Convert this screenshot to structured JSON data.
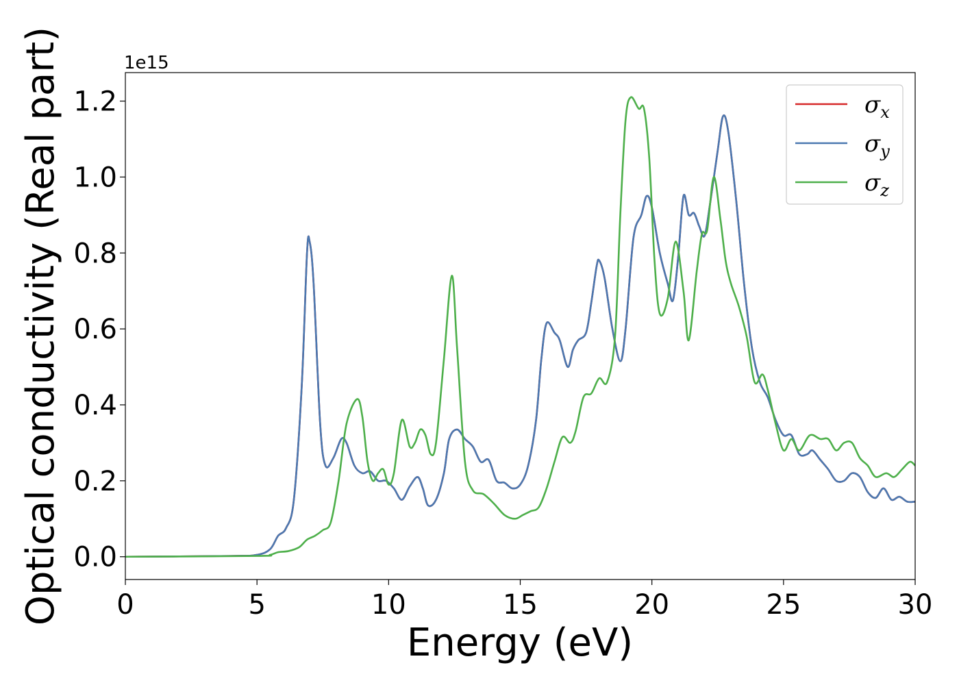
{
  "chart_data": {
    "type": "line",
    "xlabel": "Energy (eV)",
    "ylabel": "Optical conductivity (Real part)",
    "y_offset_text": "1e15",
    "y_scale_multiplier": 1000000000000000.0,
    "xlim": [
      0,
      30
    ],
    "ylim": [
      -0.06,
      1.275
    ],
    "x_ticks": [
      0,
      5,
      10,
      15,
      20,
      25,
      30
    ],
    "x_tick_labels": [
      "0",
      "5",
      "10",
      "15",
      "20",
      "25",
      "30"
    ],
    "y_ticks": [
      0.0,
      0.2,
      0.4,
      0.6,
      0.8,
      1.0,
      1.2
    ],
    "y_tick_labels": [
      "0.0",
      "0.2",
      "0.4",
      "0.6",
      "0.8",
      "1.0",
      "1.2"
    ],
    "grid": false,
    "legend_position": "top-right",
    "series": [
      {
        "name": "σx",
        "legend_symbol": "σ",
        "legend_subscript": "x",
        "color": "#d62728",
        "points": [
          [
            0,
            0
          ],
          [
            4,
            0.002
          ],
          [
            5,
            0.005
          ],
          [
            5.5,
            0.02
          ],
          [
            5.8,
            0.055
          ],
          [
            6.1,
            0.075
          ],
          [
            6.4,
            0.15
          ],
          [
            6.7,
            0.45
          ],
          [
            6.9,
            0.8
          ],
          [
            7.0,
            0.83
          ],
          [
            7.15,
            0.72
          ],
          [
            7.4,
            0.35
          ],
          [
            7.6,
            0.24
          ],
          [
            7.9,
            0.26
          ],
          [
            8.2,
            0.31
          ],
          [
            8.4,
            0.3
          ],
          [
            8.7,
            0.24
          ],
          [
            9.0,
            0.22
          ],
          [
            9.3,
            0.225
          ],
          [
            9.6,
            0.2
          ],
          [
            9.9,
            0.2
          ],
          [
            10.2,
            0.18
          ],
          [
            10.5,
            0.15
          ],
          [
            10.8,
            0.185
          ],
          [
            11.1,
            0.21
          ],
          [
            11.3,
            0.18
          ],
          [
            11.5,
            0.135
          ],
          [
            11.8,
            0.15
          ],
          [
            12.1,
            0.22
          ],
          [
            12.3,
            0.31
          ],
          [
            12.6,
            0.335
          ],
          [
            12.9,
            0.31
          ],
          [
            13.2,
            0.29
          ],
          [
            13.5,
            0.25
          ],
          [
            13.8,
            0.255
          ],
          [
            14.1,
            0.2
          ],
          [
            14.4,
            0.195
          ],
          [
            14.7,
            0.18
          ],
          [
            15.0,
            0.19
          ],
          [
            15.3,
            0.24
          ],
          [
            15.6,
            0.36
          ],
          [
            15.8,
            0.52
          ],
          [
            16.0,
            0.615
          ],
          [
            16.3,
            0.59
          ],
          [
            16.5,
            0.57
          ],
          [
            16.8,
            0.5
          ],
          [
            17.0,
            0.545
          ],
          [
            17.2,
            0.57
          ],
          [
            17.5,
            0.59
          ],
          [
            17.7,
            0.67
          ],
          [
            17.9,
            0.765
          ],
          [
            18.0,
            0.78
          ],
          [
            18.2,
            0.735
          ],
          [
            18.5,
            0.6
          ],
          [
            18.8,
            0.515
          ],
          [
            19.0,
            0.6
          ],
          [
            19.3,
            0.84
          ],
          [
            19.6,
            0.9
          ],
          [
            19.8,
            0.95
          ],
          [
            20.0,
            0.92
          ],
          [
            20.3,
            0.8
          ],
          [
            20.6,
            0.72
          ],
          [
            20.8,
            0.675
          ],
          [
            21.0,
            0.79
          ],
          [
            21.2,
            0.95
          ],
          [
            21.4,
            0.9
          ],
          [
            21.6,
            0.905
          ],
          [
            21.8,
            0.87
          ],
          [
            22.0,
            0.845
          ],
          [
            22.2,
            0.925
          ],
          [
            22.5,
            1.07
          ],
          [
            22.7,
            1.16
          ],
          [
            22.9,
            1.12
          ],
          [
            23.2,
            0.94
          ],
          [
            23.5,
            0.72
          ],
          [
            23.8,
            0.55
          ],
          [
            24.1,
            0.46
          ],
          [
            24.4,
            0.42
          ],
          [
            24.7,
            0.36
          ],
          [
            25.0,
            0.32
          ],
          [
            25.3,
            0.32
          ],
          [
            25.6,
            0.27
          ],
          [
            25.9,
            0.27
          ],
          [
            26.1,
            0.28
          ],
          [
            26.4,
            0.255
          ],
          [
            26.7,
            0.23
          ],
          [
            27.0,
            0.2
          ],
          [
            27.3,
            0.2
          ],
          [
            27.6,
            0.22
          ],
          [
            27.9,
            0.21
          ],
          [
            28.2,
            0.17
          ],
          [
            28.5,
            0.155
          ],
          [
            28.8,
            0.18
          ],
          [
            29.1,
            0.15
          ],
          [
            29.4,
            0.158
          ],
          [
            29.7,
            0.145
          ],
          [
            30.0,
            0.145
          ]
        ]
      },
      {
        "name": "σy",
        "legend_symbol": "σ",
        "legend_subscript": "y",
        "color": "#4a78b0",
        "points": [
          [
            0,
            0
          ],
          [
            4,
            0.002
          ],
          [
            5,
            0.005
          ],
          [
            5.5,
            0.02
          ],
          [
            5.8,
            0.055
          ],
          [
            6.1,
            0.075
          ],
          [
            6.4,
            0.15
          ],
          [
            6.7,
            0.45
          ],
          [
            6.9,
            0.8
          ],
          [
            7.0,
            0.83
          ],
          [
            7.15,
            0.72
          ],
          [
            7.4,
            0.35
          ],
          [
            7.6,
            0.24
          ],
          [
            7.9,
            0.26
          ],
          [
            8.2,
            0.31
          ],
          [
            8.4,
            0.3
          ],
          [
            8.7,
            0.24
          ],
          [
            9.0,
            0.22
          ],
          [
            9.3,
            0.225
          ],
          [
            9.6,
            0.2
          ],
          [
            9.9,
            0.2
          ],
          [
            10.2,
            0.18
          ],
          [
            10.5,
            0.15
          ],
          [
            10.8,
            0.185
          ],
          [
            11.1,
            0.21
          ],
          [
            11.3,
            0.18
          ],
          [
            11.5,
            0.135
          ],
          [
            11.8,
            0.15
          ],
          [
            12.1,
            0.22
          ],
          [
            12.3,
            0.31
          ],
          [
            12.6,
            0.335
          ],
          [
            12.9,
            0.31
          ],
          [
            13.2,
            0.29
          ],
          [
            13.5,
            0.25
          ],
          [
            13.8,
            0.255
          ],
          [
            14.1,
            0.2
          ],
          [
            14.4,
            0.195
          ],
          [
            14.7,
            0.18
          ],
          [
            15.0,
            0.19
          ],
          [
            15.3,
            0.24
          ],
          [
            15.6,
            0.36
          ],
          [
            15.8,
            0.52
          ],
          [
            16.0,
            0.615
          ],
          [
            16.3,
            0.59
          ],
          [
            16.5,
            0.57
          ],
          [
            16.8,
            0.5
          ],
          [
            17.0,
            0.545
          ],
          [
            17.2,
            0.57
          ],
          [
            17.5,
            0.59
          ],
          [
            17.7,
            0.67
          ],
          [
            17.9,
            0.765
          ],
          [
            18.0,
            0.78
          ],
          [
            18.2,
            0.735
          ],
          [
            18.5,
            0.6
          ],
          [
            18.8,
            0.515
          ],
          [
            19.0,
            0.6
          ],
          [
            19.3,
            0.84
          ],
          [
            19.6,
            0.9
          ],
          [
            19.8,
            0.95
          ],
          [
            20.0,
            0.92
          ],
          [
            20.3,
            0.8
          ],
          [
            20.6,
            0.72
          ],
          [
            20.8,
            0.675
          ],
          [
            21.0,
            0.79
          ],
          [
            21.2,
            0.95
          ],
          [
            21.4,
            0.9
          ],
          [
            21.6,
            0.905
          ],
          [
            21.8,
            0.87
          ],
          [
            22.0,
            0.845
          ],
          [
            22.2,
            0.925
          ],
          [
            22.5,
            1.07
          ],
          [
            22.7,
            1.16
          ],
          [
            22.9,
            1.12
          ],
          [
            23.2,
            0.94
          ],
          [
            23.5,
            0.72
          ],
          [
            23.8,
            0.55
          ],
          [
            24.1,
            0.46
          ],
          [
            24.4,
            0.42
          ],
          [
            24.7,
            0.36
          ],
          [
            25.0,
            0.32
          ],
          [
            25.3,
            0.32
          ],
          [
            25.6,
            0.27
          ],
          [
            25.9,
            0.27
          ],
          [
            26.1,
            0.28
          ],
          [
            26.4,
            0.255
          ],
          [
            26.7,
            0.23
          ],
          [
            27.0,
            0.2
          ],
          [
            27.3,
            0.2
          ],
          [
            27.6,
            0.22
          ],
          [
            27.9,
            0.21
          ],
          [
            28.2,
            0.17
          ],
          [
            28.5,
            0.155
          ],
          [
            28.8,
            0.18
          ],
          [
            29.1,
            0.15
          ],
          [
            29.4,
            0.158
          ],
          [
            29.7,
            0.145
          ],
          [
            30.0,
            0.145
          ]
        ]
      },
      {
        "name": "σz",
        "legend_symbol": "σ",
        "legend_subscript": "z",
        "color": "#4daf4a",
        "points": [
          [
            0,
            0
          ],
          [
            5,
            0.002
          ],
          [
            5.5,
            0.005
          ],
          [
            5.8,
            0.012
          ],
          [
            6.2,
            0.015
          ],
          [
            6.6,
            0.025
          ],
          [
            6.9,
            0.045
          ],
          [
            7.2,
            0.055
          ],
          [
            7.5,
            0.07
          ],
          [
            7.8,
            0.09
          ],
          [
            8.1,
            0.2
          ],
          [
            8.4,
            0.35
          ],
          [
            8.8,
            0.415
          ],
          [
            9.0,
            0.37
          ],
          [
            9.2,
            0.25
          ],
          [
            9.4,
            0.2
          ],
          [
            9.6,
            0.22
          ],
          [
            9.8,
            0.23
          ],
          [
            10.0,
            0.19
          ],
          [
            10.2,
            0.22
          ],
          [
            10.5,
            0.36
          ],
          [
            10.8,
            0.29
          ],
          [
            11.0,
            0.3
          ],
          [
            11.2,
            0.335
          ],
          [
            11.4,
            0.32
          ],
          [
            11.6,
            0.27
          ],
          [
            11.8,
            0.3
          ],
          [
            12.1,
            0.52
          ],
          [
            12.4,
            0.74
          ],
          [
            12.6,
            0.55
          ],
          [
            12.9,
            0.25
          ],
          [
            13.2,
            0.175
          ],
          [
            13.6,
            0.165
          ],
          [
            14.0,
            0.14
          ],
          [
            14.4,
            0.11
          ],
          [
            14.8,
            0.1
          ],
          [
            15.1,
            0.11
          ],
          [
            15.4,
            0.12
          ],
          [
            15.7,
            0.13
          ],
          [
            16.0,
            0.18
          ],
          [
            16.3,
            0.25
          ],
          [
            16.6,
            0.315
          ],
          [
            16.9,
            0.3
          ],
          [
            17.1,
            0.33
          ],
          [
            17.4,
            0.42
          ],
          [
            17.7,
            0.43
          ],
          [
            18.0,
            0.47
          ],
          [
            18.3,
            0.46
          ],
          [
            18.6,
            0.58
          ],
          [
            18.8,
            0.9
          ],
          [
            19.0,
            1.15
          ],
          [
            19.2,
            1.21
          ],
          [
            19.5,
            1.18
          ],
          [
            19.7,
            1.18
          ],
          [
            19.9,
            1.05
          ],
          [
            20.1,
            0.78
          ],
          [
            20.3,
            0.64
          ],
          [
            20.6,
            0.68
          ],
          [
            20.9,
            0.83
          ],
          [
            21.2,
            0.7
          ],
          [
            21.4,
            0.57
          ],
          [
            21.7,
            0.75
          ],
          [
            21.9,
            0.85
          ],
          [
            22.1,
            0.86
          ],
          [
            22.35,
            1.0
          ],
          [
            22.6,
            0.89
          ],
          [
            22.8,
            0.78
          ],
          [
            23.0,
            0.72
          ],
          [
            23.3,
            0.66
          ],
          [
            23.6,
            0.58
          ],
          [
            23.9,
            0.46
          ],
          [
            24.2,
            0.48
          ],
          [
            24.4,
            0.44
          ],
          [
            24.7,
            0.35
          ],
          [
            25.0,
            0.28
          ],
          [
            25.3,
            0.31
          ],
          [
            25.6,
            0.28
          ],
          [
            26.0,
            0.32
          ],
          [
            26.4,
            0.31
          ],
          [
            26.7,
            0.31
          ],
          [
            27.0,
            0.28
          ],
          [
            27.3,
            0.3
          ],
          [
            27.6,
            0.3
          ],
          [
            27.9,
            0.26
          ],
          [
            28.2,
            0.24
          ],
          [
            28.5,
            0.21
          ],
          [
            28.9,
            0.22
          ],
          [
            29.2,
            0.21
          ],
          [
            29.5,
            0.23
          ],
          [
            29.8,
            0.25
          ],
          [
            30.0,
            0.24
          ]
        ]
      }
    ]
  }
}
